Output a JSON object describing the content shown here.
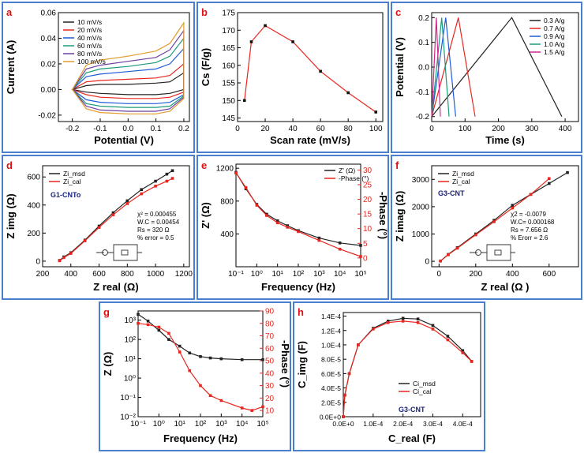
{
  "colors": {
    "black": "#222222",
    "red": "#e8261f",
    "green": "#1a9a7a",
    "magenta": "#d2278a",
    "orange": "#e39b2b",
    "blue": "#1e5bd8",
    "navy": "#1a237e",
    "purple": "#6b3fa0",
    "panel_border": "#4a7fd0"
  },
  "chart_data": [
    {
      "panel": "a",
      "type": "line",
      "title": "",
      "xlabel": "Potential (V)",
      "ylabel": "Current (A)",
      "xlim": [
        -0.25,
        0.22
      ],
      "ylim": [
        -0.025,
        0.06
      ],
      "xticks": [
        "-0.2",
        "-0.1",
        "0.0",
        "0.1",
        "0.2"
      ],
      "yticks": [
        "-0.02",
        "0.00",
        "0.02",
        "0.04",
        "0.06"
      ],
      "legend": [
        "10 mV/s",
        "20 mV/s",
        "40 mV/s",
        "60 mV/s",
        "80 mV/s",
        "100 mV/s"
      ],
      "series": [
        {
          "name": "10 mV/s",
          "x": [
            -0.2,
            -0.15,
            -0.1,
            0,
            0.1,
            0.15,
            0.2,
            0.2,
            0.15,
            0.1,
            0,
            -0.1,
            -0.15,
            -0.2
          ],
          "y": [
            0.0,
            0.003,
            0.004,
            0.004,
            0.005,
            0.006,
            0.013,
            0.0,
            -0.003,
            -0.004,
            -0.004,
            -0.003,
            -0.002,
            0.0
          ]
        },
        {
          "name": "20 mV/s",
          "x": [
            -0.2,
            -0.15,
            -0.1,
            0,
            0.1,
            0.15,
            0.2,
            0.2,
            0.15,
            0.1,
            0,
            -0.1,
            -0.15,
            -0.2
          ],
          "y": [
            0.0,
            0.006,
            0.007,
            0.008,
            0.009,
            0.011,
            0.02,
            -0.002,
            -0.006,
            -0.007,
            -0.007,
            -0.006,
            -0.004,
            0.0
          ]
        },
        {
          "name": "40 mV/s",
          "x": [
            -0.2,
            -0.15,
            -0.1,
            0,
            0.1,
            0.15,
            0.2,
            0.2,
            0.15,
            0.1,
            0,
            -0.1,
            -0.15,
            -0.2
          ],
          "y": [
            0.0,
            0.01,
            0.012,
            0.014,
            0.016,
            0.02,
            0.032,
            -0.004,
            -0.01,
            -0.011,
            -0.011,
            -0.01,
            -0.008,
            0.0
          ]
        },
        {
          "name": "60 mV/s",
          "x": [
            -0.2,
            -0.15,
            -0.1,
            0,
            0.1,
            0.15,
            0.2,
            0.2,
            0.15,
            0.1,
            0,
            -0.1,
            -0.15,
            -0.2
          ],
          "y": [
            0.0,
            0.013,
            0.016,
            0.018,
            0.021,
            0.026,
            0.04,
            -0.005,
            -0.013,
            -0.014,
            -0.014,
            -0.013,
            -0.011,
            0.0
          ]
        },
        {
          "name": "80 mV/s",
          "x": [
            -0.2,
            -0.15,
            -0.1,
            0,
            0.1,
            0.15,
            0.2,
            0.2,
            0.15,
            0.1,
            0,
            -0.1,
            -0.15,
            -0.2
          ],
          "y": [
            0.0,
            0.016,
            0.019,
            0.022,
            0.025,
            0.031,
            0.046,
            -0.006,
            -0.015,
            -0.017,
            -0.017,
            -0.016,
            -0.013,
            0.0
          ]
        },
        {
          "name": "100 mV/s",
          "x": [
            -0.2,
            -0.15,
            -0.1,
            0,
            0.1,
            0.15,
            0.2,
            0.2,
            0.15,
            0.1,
            0,
            -0.1,
            -0.15,
            -0.2
          ],
          "y": [
            0.0,
            0.019,
            0.023,
            0.026,
            0.03,
            0.036,
            0.052,
            -0.007,
            -0.017,
            -0.019,
            -0.019,
            -0.018,
            -0.015,
            0.0
          ]
        }
      ]
    },
    {
      "panel": "b",
      "type": "line",
      "title": "",
      "xlabel": "Scan rate  (mV/s)",
      "ylabel": "Cs (F/g)",
      "xlim": [
        0,
        105
      ],
      "ylim": [
        144,
        175
      ],
      "xticks": [
        "0",
        "20",
        "40",
        "60",
        "80",
        "100"
      ],
      "yticks": [
        "145",
        "150",
        "155",
        "160",
        "165",
        "170",
        "175"
      ],
      "series": [
        {
          "name": "Cs",
          "x": [
            5,
            10,
            20,
            40,
            60,
            80,
            100
          ],
          "y": [
            150,
            166.7,
            171.3,
            166.7,
            158.3,
            152.2,
            146.7
          ]
        }
      ]
    },
    {
      "panel": "c",
      "type": "line",
      "title": "",
      "xlabel": "Time (s)",
      "ylabel": "Potential (V)",
      "xlim": [
        0,
        440
      ],
      "ylim": [
        -0.22,
        0.22
      ],
      "xticks": [
        "0",
        "100",
        "200",
        "300",
        "400"
      ],
      "yticks": [
        "-0.2",
        "-0.1",
        "0.0",
        "0.1",
        "0.2"
      ],
      "legend": [
        "0.3 A/g",
        "0.7 A/g",
        "0.9 A/g",
        "1.0 A/g",
        "1.5 A/g"
      ],
      "series": [
        {
          "name": "0.3 A/g",
          "x": [
            0,
            240,
            390
          ],
          "y": [
            -0.2,
            0.2,
            -0.2
          ]
        },
        {
          "name": "0.7 A/g",
          "x": [
            0,
            80,
            130
          ],
          "y": [
            -0.2,
            0.2,
            -0.2
          ]
        },
        {
          "name": "0.9 A/g",
          "x": [
            0,
            42,
            72
          ],
          "y": [
            -0.2,
            0.2,
            -0.2
          ]
        },
        {
          "name": "1.0 A/g",
          "x": [
            0,
            30,
            52
          ],
          "y": [
            -0.2,
            0.2,
            -0.2
          ]
        },
        {
          "name": "1.5 A/g",
          "x": [
            0,
            14,
            26
          ],
          "y": [
            -0.2,
            0.2,
            -0.2
          ]
        }
      ]
    },
    {
      "panel": "d",
      "type": "scatter",
      "title": "",
      "xlabel": "Z real (Ω)",
      "ylabel": "Z img (Ω)",
      "xlim": [
        200,
        1240
      ],
      "ylim": [
        -40,
        680
      ],
      "xticks": [
        "200",
        "400",
        "600",
        "800",
        "1000",
        "1200"
      ],
      "yticks": [
        "0",
        "200",
        "400",
        "600"
      ],
      "legend": [
        "Zi_msd",
        "Zi_cal"
      ],
      "label_text": "G1-CNTo",
      "fit_lines": [
        "χ²     = 0.000455",
        "W.C = 0.00454",
        "Rs     = 320 Ω",
        "% error = 0.5"
      ],
      "series": [
        {
          "name": "Zi_msd",
          "x": [
            320,
            350,
            400,
            500,
            600,
            700,
            800,
            900,
            1000,
            1080,
            1120
          ],
          "y": [
            5,
            30,
            60,
            150,
            250,
            345,
            430,
            510,
            570,
            620,
            645
          ]
        },
        {
          "name": "Zi_cal",
          "x": [
            320,
            350,
            400,
            500,
            600,
            700,
            800,
            900,
            1000,
            1080,
            1120
          ],
          "y": [
            3,
            25,
            55,
            145,
            240,
            330,
            410,
            480,
            535,
            570,
            590
          ]
        }
      ]
    },
    {
      "panel": "e",
      "type": "line",
      "title": "",
      "xlabel": "Frequency (Hz)",
      "ylabel": "Z' (Ω)",
      "ylabel_right": "-Phase (°)",
      "xscale": "log",
      "xlim": [
        0.1,
        100000
      ],
      "ylim": [
        0,
        1250
      ],
      "ylim_right": [
        -3,
        32
      ],
      "xticks": [
        "10⁻¹",
        "10⁰",
        "10¹",
        "10²",
        "10³",
        "10⁴",
        "10⁵"
      ],
      "yticks": [
        "400",
        "800",
        "1200"
      ],
      "yticks_right": [
        "0",
        "5",
        "10",
        "15",
        "20",
        "25",
        "30"
      ],
      "legend": [
        "Z' (Ω)",
        "-Phase (°)"
      ],
      "series": [
        {
          "name": "Z' (Ω)",
          "x": [
            0.1,
            0.3,
            1,
            3,
            10,
            30,
            100,
            1000,
            10000,
            100000
          ],
          "y": [
            1150,
            950,
            760,
            640,
            560,
            500,
            440,
            350,
            290,
            260
          ]
        },
        {
          "name": "-Phase (°)",
          "x": [
            0.1,
            0.3,
            1,
            3,
            10,
            30,
            100,
            1000,
            10000,
            100000
          ],
          "y": [
            29,
            24,
            18,
            14.5,
            12,
            10.5,
            9,
            6,
            3,
            0.5
          ]
        }
      ]
    },
    {
      "panel": "f",
      "type": "scatter",
      "title": "",
      "xlabel": "Z real (Ω )",
      "ylabel": "Z imag (Ω)",
      "xlim": [
        -40,
        760
      ],
      "ylim": [
        -200,
        3500
      ],
      "xticks": [
        "0",
        "200",
        "400",
        "600"
      ],
      "yticks": [
        "0",
        "1000",
        "2000",
        "3000"
      ],
      "legend": [
        "Zi_msd",
        "Zi_cal"
      ],
      "label_text": "G3-CNT",
      "fit_lines": [
        "χ2 = -0.0079",
        "W.C= 0.000168",
        "Rs = 7.656 Ω",
        "% Erorr = 2.6"
      ],
      "series": [
        {
          "name": "Zi_msd",
          "x": [
            8,
            50,
            100,
            200,
            300,
            400,
            500,
            600,
            700
          ],
          "y": [
            10,
            250,
            500,
            1000,
            1500,
            2050,
            2450,
            2850,
            3250
          ]
        },
        {
          "name": "Zi_cal",
          "x": [
            8,
            50,
            100,
            200,
            300,
            400,
            500,
            600
          ],
          "y": [
            10,
            240,
            480,
            970,
            1450,
            1950,
            2450,
            3030
          ]
        }
      ]
    },
    {
      "panel": "g",
      "type": "line",
      "title": "",
      "xlabel": "Frequency (Hz)",
      "ylabel": "Z (Ω)",
      "ylabel_right": "-Phase (°)",
      "xscale": "log",
      "yscale": "log",
      "xlim": [
        0.1,
        100000
      ],
      "ylim": [
        0.01,
        3000
      ],
      "ylim_right": [
        5,
        90
      ],
      "xticks": [
        "10⁻¹",
        "10⁰",
        "10¹",
        "10²",
        "10³",
        "10⁴",
        "10⁵"
      ],
      "yticks": [
        "10⁻²",
        "10⁻¹",
        "10⁰",
        "10¹",
        "10²",
        "10³"
      ],
      "yticks_right": [
        "10",
        "20",
        "30",
        "40",
        "50",
        "60",
        "70",
        "80",
        "90"
      ],
      "series": [
        {
          "name": "Z (Ω)",
          "x": [
            0.1,
            0.3,
            1,
            3,
            10,
            30,
            100,
            300,
            1000,
            10000,
            100000
          ],
          "y": [
            2000,
            900,
            300,
            100,
            45,
            20,
            13,
            11,
            10,
            9,
            9
          ]
        },
        {
          "name": "-Phase (°)",
          "x": [
            0.1,
            0.3,
            1,
            3,
            10,
            30,
            100,
            300,
            1000,
            10000,
            30000,
            100000
          ],
          "y": [
            80,
            79,
            77,
            72,
            57,
            42,
            30,
            22,
            18,
            12,
            10,
            13
          ]
        }
      ]
    },
    {
      "panel": "h",
      "type": "line",
      "title": "",
      "xlabel": "C_real (F)",
      "ylabel": "C_img (F)",
      "xlim": [
        0,
        0.00046
      ],
      "ylim": [
        0,
        0.000145
      ],
      "xticks": [
        "0.0E+0",
        "1.0E-4",
        "2.0E-4",
        "3.0E-4",
        "4.0E-4"
      ],
      "yticks": [
        "0.0E+0",
        "2.0E-5",
        "4.0E-5",
        "6.0E-5",
        "8.0E-5",
        "1.0E-4",
        "1.2E-4",
        "1.4E-4"
      ],
      "legend": [
        "Ci_msd",
        "Ci_cal"
      ],
      "label_text": "G3-CNT",
      "series": [
        {
          "name": "Ci_msd",
          "x": [
            0,
            5e-06,
            2e-05,
            5e-05,
            0.0001,
            0.00015,
            0.0002,
            0.00025,
            0.0003,
            0.00035,
            0.0004,
            0.00043
          ],
          "y": [
            0,
            3e-05,
            6e-05,
            0.0001,
            0.000123,
            0.000133,
            0.000137,
            0.000136,
            0.000127,
            0.000112,
            9.2e-05,
            7.7e-05
          ]
        },
        {
          "name": "Ci_cal",
          "x": [
            0,
            5e-06,
            2e-05,
            5e-05,
            0.0001,
            0.00015,
            0.0002,
            0.00025,
            0.0003,
            0.00035,
            0.0004,
            0.00043
          ],
          "y": [
            0,
            3e-05,
            6e-05,
            0.0001,
            0.000122,
            0.000131,
            0.000133,
            0.000131,
            0.000122,
            0.000107,
            8.9e-05,
            7.7e-05
          ]
        }
      ]
    }
  ]
}
